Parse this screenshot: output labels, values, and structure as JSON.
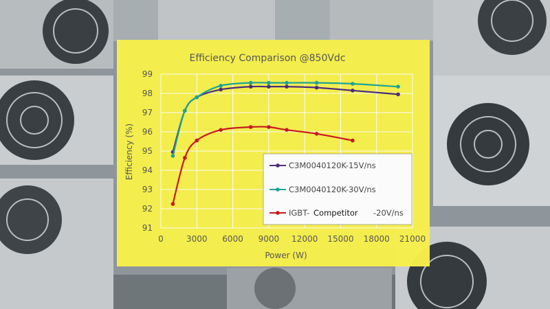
{
  "colors": {
    "panel": "#f7f04b",
    "series": [
      "#4b2a7a",
      "#1aa596",
      "#c8141e"
    ],
    "grid": "#ffffff"
  },
  "chart_data": {
    "type": "line",
    "title": "Efficiency Comparison @850Vdc",
    "xlabel": "Power (W)",
    "ylabel": "Efficiency (%)",
    "xlim": [
      0,
      21000
    ],
    "ylim": [
      91,
      99
    ],
    "xticks": [
      0,
      3000,
      6000,
      9000,
      12000,
      15000,
      18000,
      21000
    ],
    "xtick_labels": [
      "0",
      "3000",
      "6000",
      "9000",
      "12000",
      "15000",
      "18000",
      "21000"
    ],
    "yticks": [
      91,
      92,
      93,
      94,
      95,
      96,
      97,
      98,
      99
    ],
    "grid": true,
    "legend_position": "bottom-right",
    "series": [
      {
        "name": "C3M0040120K-15V/ns",
        "color": "#4b2a7a",
        "x": [
          1000,
          2000,
          3000,
          5000,
          7500,
          9000,
          10500,
          13000,
          16000,
          19800
        ],
        "y": [
          94.95,
          97.1,
          97.8,
          98.2,
          98.35,
          98.35,
          98.35,
          98.3,
          98.15,
          97.95
        ]
      },
      {
        "name": "C3M0040120K-30V/ns",
        "color": "#1aa596",
        "x": [
          1000,
          2000,
          3000,
          5000,
          7500,
          9000,
          10500,
          13000,
          16000,
          19800
        ],
        "y": [
          94.75,
          97.1,
          97.8,
          98.4,
          98.55,
          98.55,
          98.55,
          98.55,
          98.5,
          98.35
        ]
      },
      {
        "name": "IGBT- Competitor -20V/ns",
        "label_parts": [
          "IGBT-",
          "Competitor",
          "-20V/ns"
        ],
        "color": "#c8141e",
        "x": [
          1000,
          2000,
          3000,
          5000,
          7500,
          9000,
          10500,
          13000,
          16000
        ],
        "y": [
          92.25,
          94.65,
          95.55,
          96.1,
          96.25,
          96.25,
          96.1,
          95.9,
          95.55
        ]
      }
    ]
  }
}
